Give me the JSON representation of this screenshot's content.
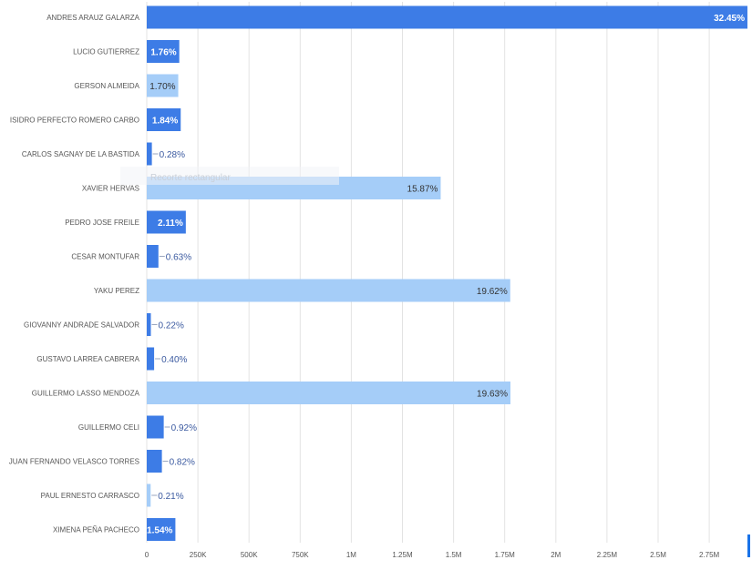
{
  "colors": {
    "dark": "#3d7ce6",
    "light": "#a5cdf8",
    "grid": "#e3e3e3",
    "outside_label": "#3b5aa0",
    "accent": "#1a73e8"
  },
  "chart_data": {
    "type": "bar",
    "orientation": "horizontal",
    "title": "",
    "xlabel": "",
    "ylabel": "",
    "xlim": [
      0,
      2850000
    ],
    "x_ticks": [
      {
        "value": 0,
        "label": "0"
      },
      {
        "value": 250000,
        "label": "250K"
      },
      {
        "value": 500000,
        "label": "500K"
      },
      {
        "value": 750000,
        "label": "750K"
      },
      {
        "value": 1000000,
        "label": "1M"
      },
      {
        "value": 1250000,
        "label": "1.25M"
      },
      {
        "value": 1500000,
        "label": "1.5M"
      },
      {
        "value": 1750000,
        "label": "1.75M"
      },
      {
        "value": 2000000,
        "label": "2M"
      },
      {
        "value": 2250000,
        "label": "2.25M"
      },
      {
        "value": 2500000,
        "label": "2.5M"
      },
      {
        "value": 2750000,
        "label": "2.75M"
      }
    ],
    "grid": true,
    "legend": "none",
    "bars": [
      {
        "category": "ANDRES ARAUZ GALARZA",
        "value": 2940000,
        "label": "32.45%",
        "shade": "dark"
      },
      {
        "category": "LUCIO GUTIERREZ",
        "value": 159000,
        "label": "1.76%",
        "shade": "dark"
      },
      {
        "category": "GERSON ALMEIDA",
        "value": 154000,
        "label": "1.70%",
        "shade": "light"
      },
      {
        "category": "ISIDRO PERFECTO ROMERO CARBO",
        "value": 166000,
        "label": "1.84%",
        "shade": "dark"
      },
      {
        "category": "CARLOS SAGNAY DE LA BASTIDA",
        "value": 25000,
        "label": "0.28%",
        "shade": "dark"
      },
      {
        "category": "XAVIER HERVAS",
        "value": 1437000,
        "label": "15.87%",
        "shade": "light"
      },
      {
        "category": "PEDRO JOSE FREILE",
        "value": 191000,
        "label": "2.11%",
        "shade": "dark"
      },
      {
        "category": "CESAR MONTUFAR",
        "value": 57000,
        "label": "0.63%",
        "shade": "dark"
      },
      {
        "category": "YAKU PEREZ",
        "value": 1777000,
        "label": "19.62%",
        "shade": "light"
      },
      {
        "category": "GIOVANNY ANDRADE SALVADOR",
        "value": 20000,
        "label": "0.22%",
        "shade": "dark"
      },
      {
        "category": "GUSTAVO LARREA CABRERA",
        "value": 36000,
        "label": "0.40%",
        "shade": "dark"
      },
      {
        "category": "GUILLERMO LASSO MENDOZA",
        "value": 1778000,
        "label": "19.63%",
        "shade": "light"
      },
      {
        "category": "GUILLERMO CELI",
        "value": 83000,
        "label": "0.92%",
        "shade": "dark"
      },
      {
        "category": "JUAN FERNANDO VELASCO TORRES",
        "value": 74000,
        "label": "0.82%",
        "shade": "dark"
      },
      {
        "category": "PAUL ERNESTO CARRASCO",
        "value": 19000,
        "label": "0.21%",
        "shade": "light"
      },
      {
        "category": "XIMENA PEÑA PACHECO",
        "value": 140000,
        "label": "1.54%",
        "shade": "dark"
      }
    ],
    "annotations": [
      {
        "text": "Recorte rectangular"
      }
    ]
  }
}
